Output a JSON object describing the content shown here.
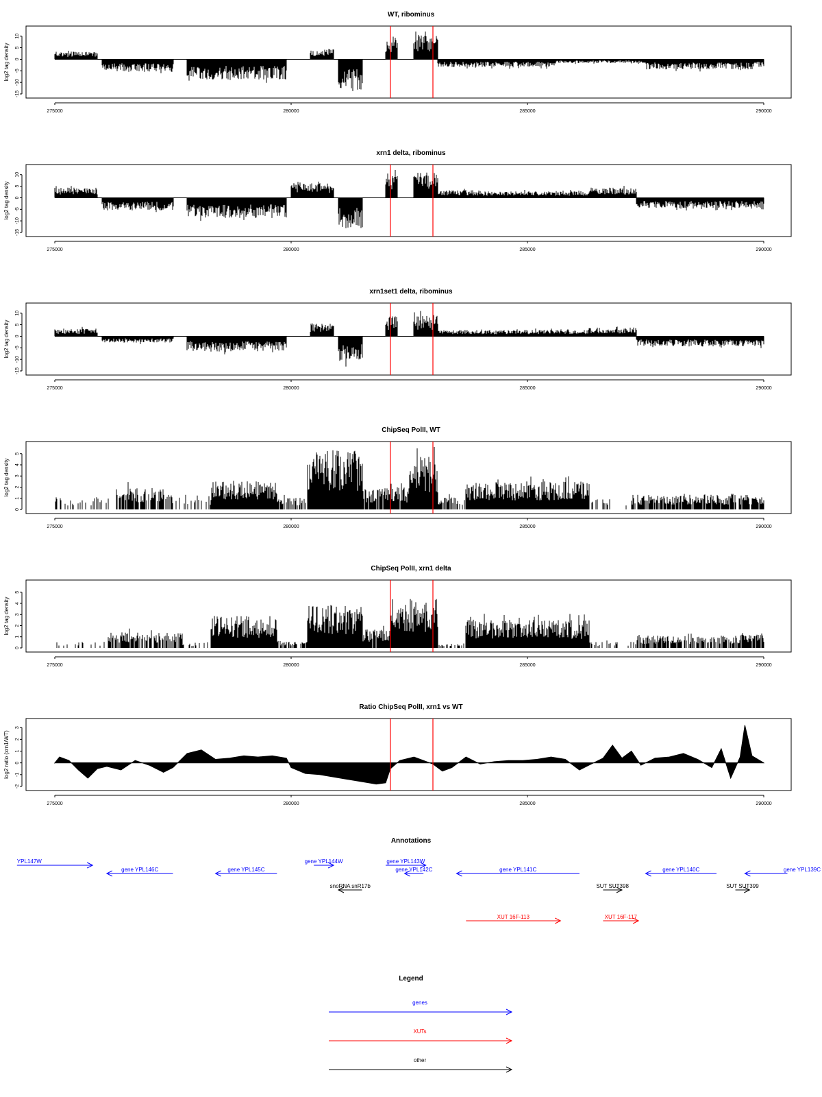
{
  "chart_data": [
    {
      "type": "area",
      "title": "WT, ribominus",
      "ylabel": "log2 tag density",
      "xlim": [
        275000,
        290000
      ],
      "ylim": [
        -15,
        12
      ],
      "x_ticks": [
        "275000",
        "280000",
        "285000",
        "290000"
      ],
      "y_ticks": [
        "-15",
        "-10",
        "-5",
        "0",
        "5",
        "10"
      ],
      "markers_x": [
        282100,
        283000
      ],
      "regions": [
        {
          "x0": 275000,
          "x1": 275900,
          "amp": 3
        },
        {
          "x0": 276000,
          "x1": 277500,
          "amp": -5
        },
        {
          "x0": 277800,
          "x1": 279900,
          "amp": -8
        },
        {
          "x0": 280400,
          "x1": 280900,
          "amp": 4
        },
        {
          "x0": 281000,
          "x1": 281500,
          "amp": -12
        },
        {
          "x0": 282000,
          "x1": 282250,
          "amp": 8
        },
        {
          "x0": 282600,
          "x1": 283100,
          "amp": 10
        },
        {
          "x0": 283100,
          "x1": 285600,
          "amp": -3
        },
        {
          "x0": 285600,
          "x1": 287500,
          "amp": -1.5
        },
        {
          "x0": 287500,
          "x1": 289800,
          "amp": -4
        },
        {
          "x0": 289800,
          "x1": 290000,
          "amp": -3
        }
      ]
    },
    {
      "type": "area",
      "title": "xrn1 delta, ribominus",
      "ylabel": "log2 tag density",
      "xlim": [
        275000,
        290000
      ],
      "ylim": [
        -15,
        12
      ],
      "x_ticks": [
        "275000",
        "280000",
        "285000",
        "290000"
      ],
      "y_ticks": [
        "-15",
        "-10",
        "-5",
        "0",
        "5",
        "10"
      ],
      "markers_x": [
        282100,
        283000
      ],
      "regions": [
        {
          "x0": 275000,
          "x1": 275900,
          "amp": 4
        },
        {
          "x0": 276000,
          "x1": 277500,
          "amp": -5
        },
        {
          "x0": 277800,
          "x1": 279900,
          "amp": -8
        },
        {
          "x0": 280000,
          "x1": 280900,
          "amp": 6
        },
        {
          "x0": 281000,
          "x1": 281500,
          "amp": -12
        },
        {
          "x0": 282000,
          "x1": 282250,
          "amp": 10
        },
        {
          "x0": 282600,
          "x1": 283100,
          "amp": 10
        },
        {
          "x0": 283100,
          "x1": 284000,
          "amp": 3
        },
        {
          "x0": 284000,
          "x1": 286300,
          "amp": 2.5
        },
        {
          "x0": 286300,
          "x1": 287300,
          "amp": 4
        },
        {
          "x0": 287300,
          "x1": 290000,
          "amp": -4
        }
      ]
    },
    {
      "type": "area",
      "title": "xrn1set1 delta, ribominus",
      "ylabel": "log2 tag density",
      "xlim": [
        275000,
        290000
      ],
      "ylim": [
        -15,
        12
      ],
      "x_ticks": [
        "275000",
        "280000",
        "285000",
        "290000"
      ],
      "y_ticks": [
        "-15",
        "-10",
        "-5",
        "0",
        "5",
        "10"
      ],
      "markers_x": [
        282100,
        283000
      ],
      "regions": [
        {
          "x0": 275000,
          "x1": 275900,
          "amp": 3
        },
        {
          "x0": 276000,
          "x1": 277500,
          "amp": -2.5
        },
        {
          "x0": 277800,
          "x1": 279900,
          "amp": -6
        },
        {
          "x0": 280400,
          "x1": 280900,
          "amp": 5
        },
        {
          "x0": 281000,
          "x1": 281500,
          "amp": -10
        },
        {
          "x0": 282000,
          "x1": 282250,
          "amp": 8
        },
        {
          "x0": 282600,
          "x1": 283100,
          "amp": 8
        },
        {
          "x0": 283100,
          "x1": 286300,
          "amp": 2.5
        },
        {
          "x0": 286300,
          "x1": 287300,
          "amp": 3.5
        },
        {
          "x0": 287300,
          "x1": 290000,
          "amp": -4
        }
      ]
    },
    {
      "type": "bar",
      "title": "ChipSeq PolII, WT",
      "ylabel": "log2 tag density",
      "xlim": [
        275000,
        290000
      ],
      "ylim": [
        0,
        5.6
      ],
      "x_ticks": [
        "275000",
        "280000",
        "285000",
        "290000"
      ],
      "y_ticks": [
        "0",
        "1",
        "2",
        "3",
        "4",
        "5"
      ],
      "markers_x": [
        282100,
        283000
      ],
      "regions": [
        {
          "x0": 275000,
          "x1": 276300,
          "amp": 1,
          "density": 0.25
        },
        {
          "x0": 276300,
          "x1": 277300,
          "amp": 1.8,
          "density": 0.8
        },
        {
          "x0": 277300,
          "x1": 278300,
          "amp": 1.2,
          "density": 0.35
        },
        {
          "x0": 278300,
          "x1": 279700,
          "amp": 2.3,
          "density": 1
        },
        {
          "x0": 279700,
          "x1": 280350,
          "amp": 1,
          "density": 0.6
        },
        {
          "x0": 280350,
          "x1": 281500,
          "amp": 4.8,
          "density": 1
        },
        {
          "x0": 281500,
          "x1": 282500,
          "amp": 1.8,
          "density": 0.9
        },
        {
          "x0": 282500,
          "x1": 283100,
          "amp": 4.3,
          "density": 1
        },
        {
          "x0": 283100,
          "x1": 283700,
          "amp": 1,
          "density": 0.5
        },
        {
          "x0": 283700,
          "x1": 286300,
          "amp": 2.3,
          "density": 1
        },
        {
          "x0": 286300,
          "x1": 287200,
          "amp": 0.9,
          "density": 0.25
        },
        {
          "x0": 287200,
          "x1": 290000,
          "amp": 1.2,
          "density": 0.8
        }
      ]
    },
    {
      "type": "bar",
      "title": "ChipSeq PolII, xrn1 delta",
      "ylabel": "log2 tag density",
      "xlim": [
        275000,
        290000
      ],
      "ylim": [
        0,
        5.6
      ],
      "x_ticks": [
        "275000",
        "280000",
        "285000",
        "290000"
      ],
      "y_ticks": [
        "0",
        "1",
        "2",
        "3",
        "4",
        "5"
      ],
      "markers_x": [
        282100,
        283000
      ],
      "regions": [
        {
          "x0": 275000,
          "x1": 276100,
          "amp": 0.5,
          "density": 0.2
        },
        {
          "x0": 276100,
          "x1": 277700,
          "amp": 1.3,
          "density": 0.7
        },
        {
          "x0": 277700,
          "x1": 278300,
          "amp": 0.5,
          "density": 0.3
        },
        {
          "x0": 278300,
          "x1": 279700,
          "amp": 2.6,
          "density": 1
        },
        {
          "x0": 279700,
          "x1": 280350,
          "amp": 0.6,
          "density": 0.6
        },
        {
          "x0": 280350,
          "x1": 281500,
          "amp": 3.5,
          "density": 1
        },
        {
          "x0": 281500,
          "x1": 282100,
          "amp": 1.5,
          "density": 0.9
        },
        {
          "x0": 282100,
          "x1": 283100,
          "amp": 4,
          "density": 1
        },
        {
          "x0": 283100,
          "x1": 283700,
          "amp": 0.4,
          "density": 0.3
        },
        {
          "x0": 283700,
          "x1": 286300,
          "amp": 2.3,
          "density": 1
        },
        {
          "x0": 286300,
          "x1": 287300,
          "amp": 0.5,
          "density": 0.2
        },
        {
          "x0": 287300,
          "x1": 289500,
          "amp": 1,
          "density": 0.7
        },
        {
          "x0": 289500,
          "x1": 290000,
          "amp": 1.3,
          "density": 0.9
        }
      ]
    },
    {
      "type": "area",
      "title": "Ratio ChipSeq PolII, xrn1 vs WT",
      "ylabel": "log2 ratio (xrn1/WT)",
      "xlim": [
        275000,
        290000
      ],
      "ylim": [
        -2,
        3.3
      ],
      "x_ticks": [
        "275000",
        "280000",
        "285000",
        "290000"
      ],
      "y_ticks": [
        "-2",
        "-1",
        "0",
        "1",
        "2",
        "3"
      ],
      "markers_x": [
        282100,
        283000
      ],
      "points": [
        [
          275000,
          0
        ],
        [
          275100,
          0.5
        ],
        [
          275300,
          0.2
        ],
        [
          275500,
          -0.6
        ],
        [
          275700,
          -1.3
        ],
        [
          275900,
          -0.5
        ],
        [
          276100,
          -0.3
        ],
        [
          276400,
          -0.6
        ],
        [
          276700,
          0.2
        ],
        [
          277000,
          -0.2
        ],
        [
          277300,
          -0.8
        ],
        [
          277500,
          -0.4
        ],
        [
          277800,
          0.8
        ],
        [
          278100,
          1.1
        ],
        [
          278400,
          0.3
        ],
        [
          278700,
          0.4
        ],
        [
          279000,
          0.6
        ],
        [
          279300,
          0.5
        ],
        [
          279600,
          0.6
        ],
        [
          279900,
          0.4
        ],
        [
          280000,
          -0.4
        ],
        [
          280300,
          -0.9
        ],
        [
          280600,
          -1.0
        ],
        [
          280900,
          -1.2
        ],
        [
          281200,
          -1.4
        ],
        [
          281500,
          -1.6
        ],
        [
          281800,
          -1.8
        ],
        [
          282000,
          -1.7
        ],
        [
          282100,
          -0.5
        ],
        [
          282300,
          0.2
        ],
        [
          282600,
          0.5
        ],
        [
          282800,
          0.2
        ],
        [
          283000,
          -0.1
        ],
        [
          283200,
          -0.7
        ],
        [
          283400,
          -0.4
        ],
        [
          283700,
          0.5
        ],
        [
          284000,
          -0.1
        ],
        [
          284300,
          0.1
        ],
        [
          284600,
          0.2
        ],
        [
          284900,
          0.2
        ],
        [
          285200,
          0.3
        ],
        [
          285500,
          0.5
        ],
        [
          285800,
          0.3
        ],
        [
          286100,
          -0.6
        ],
        [
          286300,
          -0.2
        ],
        [
          286600,
          0.4
        ],
        [
          286800,
          1.5
        ],
        [
          287000,
          0.4
        ],
        [
          287200,
          1.0
        ],
        [
          287400,
          -0.2
        ],
        [
          287700,
          0.4
        ],
        [
          288000,
          0.5
        ],
        [
          288300,
          0.8
        ],
        [
          288600,
          0.3
        ],
        [
          288900,
          -0.4
        ],
        [
          289100,
          1.2
        ],
        [
          289300,
          -1.3
        ],
        [
          289500,
          0.5
        ],
        [
          289600,
          3.2
        ],
        [
          289750,
          0.6
        ],
        [
          290000,
          0.0
        ]
      ]
    }
  ],
  "annotations": {
    "title": "Annotations",
    "items": [
      {
        "label": "YPL147W",
        "kind": "gene",
        "x0": 274200,
        "x1": 275800,
        "dir": "right",
        "row": 0,
        "label_side": "start"
      },
      {
        "label": "gene YPL146C",
        "kind": "gene",
        "x0": 276100,
        "x1": 277500,
        "dir": "left",
        "row": 1,
        "label_side": "mid"
      },
      {
        "label": "gene YPL145C",
        "kind": "gene",
        "x0": 278400,
        "x1": 279700,
        "dir": "left",
        "row": 1,
        "label_side": "mid"
      },
      {
        "label": "gene YPL144W",
        "kind": "gene",
        "x0": 280480,
        "x1": 280900,
        "dir": "right",
        "row": 0,
        "label_side": "mid"
      },
      {
        "label": "snoRNA snR17b",
        "kind": "other",
        "x0": 281000,
        "x1": 281500,
        "dir": "left",
        "row": 2,
        "label_side": "mid"
      },
      {
        "label": "gene YPL143W",
        "kind": "gene",
        "x0": 282000,
        "x1": 282850,
        "dir": "right",
        "row": 0,
        "label_side": "mid"
      },
      {
        "label": "gene YPL142C",
        "kind": "gene",
        "x0": 282400,
        "x1": 282800,
        "dir": "left",
        "row": 1,
        "label_side": "mid"
      },
      {
        "label": "gene YPL141C",
        "kind": "gene",
        "x0": 283500,
        "x1": 286100,
        "dir": "left",
        "row": 1,
        "label_side": "mid"
      },
      {
        "label": "gene YPL140C",
        "kind": "gene",
        "x0": 287500,
        "x1": 289000,
        "dir": "left",
        "row": 1,
        "label_side": "mid"
      },
      {
        "label": "gene YPL139C",
        "kind": "gene",
        "x0": 289600,
        "x1": 290500,
        "dir": "left",
        "row": 1,
        "label_side": "end"
      },
      {
        "label": "SUT SUT398",
        "kind": "other",
        "x0": 286600,
        "x1": 287000,
        "dir": "right",
        "row": 2,
        "label_side": "mid"
      },
      {
        "label": "SUT SUT399",
        "kind": "other",
        "x0": 289400,
        "x1": 289700,
        "dir": "right",
        "row": 2,
        "label_side": "mid"
      },
      {
        "label": "XUT 16F-113",
        "kind": "xut",
        "x0": 283700,
        "x1": 285700,
        "dir": "right",
        "row": 3,
        "label_side": "mid"
      },
      {
        "label": "XUT 16F-117",
        "kind": "xut",
        "x0": 286600,
        "x1": 287350,
        "dir": "right",
        "row": 3,
        "label_side": "mid"
      }
    ]
  },
  "legend": {
    "title": "Legend",
    "items": [
      {
        "label": "genes",
        "color": "#0000ff"
      },
      {
        "label": "XUTs",
        "color": "#ff0000"
      },
      {
        "label": "other",
        "color": "#000000"
      }
    ]
  },
  "colors": {
    "data": "#000000",
    "marker": "#ff0000",
    "axis": "#000000",
    "gene": "#0000ff",
    "xut": "#ff0000",
    "other": "#000000"
  }
}
